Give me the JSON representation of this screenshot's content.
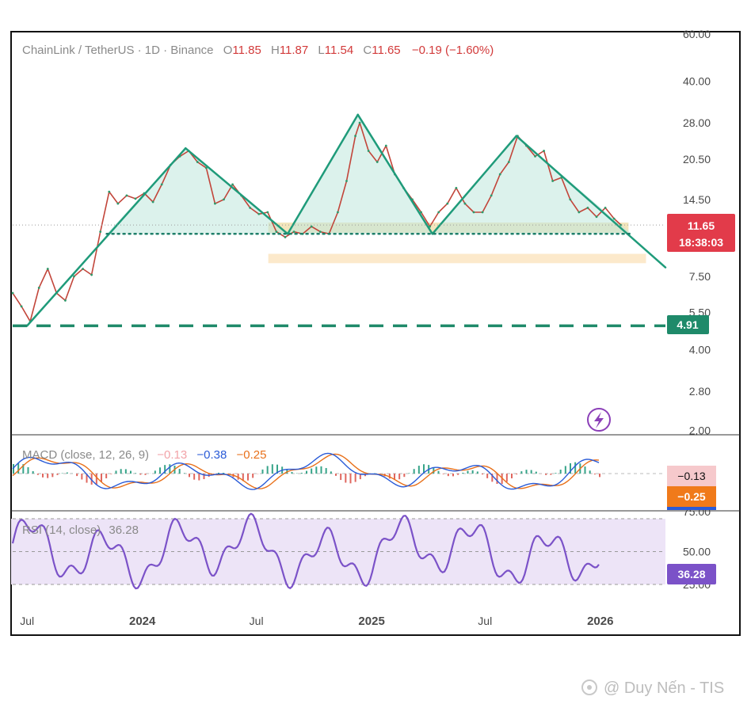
{
  "chart_data": {
    "type": "line",
    "title": "ChainLink / TetherUS · 1D · Binance",
    "ohlc": {
      "open_label": "O",
      "open": "11.85",
      "high_label": "H",
      "high": "11.87",
      "low_label": "L",
      "low": "11.54",
      "close_label": "C",
      "close": "11.65",
      "change": "−0.19 (−1.60%)"
    },
    "price_axis": {
      "scale": "log",
      "range": [
        2.0,
        60.0
      ],
      "ticks": [
        "60.00",
        "40.00",
        "28.00",
        "20.50",
        "14.50",
        "7.50",
        "5.50",
        "4.00",
        "2.80",
        "2.00"
      ]
    },
    "time_axis": {
      "labels": [
        "Jul",
        "2024",
        "Jul",
        "2025",
        "Jul",
        "2026"
      ],
      "bold": [
        false,
        true,
        false,
        true,
        false,
        true
      ],
      "dates": [
        "2023-07-01",
        "2024-01-01",
        "2024-07-01",
        "2025-01-01",
        "2025-07-01",
        "2026-01-01"
      ],
      "range": [
        "2023-06-08",
        "2026-04-15"
      ]
    },
    "price_path": [
      [
        "2023-06-08",
        6.5
      ],
      [
        "2023-06-22",
        5.8
      ],
      [
        "2023-07-06",
        5.1
      ],
      [
        "2023-07-20",
        6.8
      ],
      [
        "2023-08-03",
        8.0
      ],
      [
        "2023-08-17",
        6.5
      ],
      [
        "2023-08-31",
        6.1
      ],
      [
        "2023-09-14",
        7.5
      ],
      [
        "2023-09-28",
        8.0
      ],
      [
        "2023-10-12",
        7.6
      ],
      [
        "2023-10-26",
        11.0
      ],
      [
        "2023-11-09",
        15.5
      ],
      [
        "2023-11-23",
        14.0
      ],
      [
        "2023-12-07",
        15.0
      ],
      [
        "2023-12-21",
        14.6
      ],
      [
        "2024-01-04",
        15.3
      ],
      [
        "2024-01-18",
        14.2
      ],
      [
        "2024-02-01",
        16.5
      ],
      [
        "2024-02-15",
        19.5
      ],
      [
        "2024-03-01",
        21.0
      ],
      [
        "2024-03-15",
        22.0
      ],
      [
        "2024-03-29",
        20.0
      ],
      [
        "2024-04-12",
        19.0
      ],
      [
        "2024-04-26",
        14.0
      ],
      [
        "2024-05-10",
        14.5
      ],
      [
        "2024-05-24",
        16.5
      ],
      [
        "2024-06-07",
        15.0
      ],
      [
        "2024-06-21",
        13.5
      ],
      [
        "2024-07-05",
        12.8
      ],
      [
        "2024-07-19",
        13.0
      ],
      [
        "2024-08-02",
        11.0
      ],
      [
        "2024-08-16",
        10.5
      ],
      [
        "2024-08-30",
        11.0
      ],
      [
        "2024-09-13",
        10.8
      ],
      [
        "2024-09-27",
        11.5
      ],
      [
        "2024-10-11",
        11.0
      ],
      [
        "2024-10-25",
        10.8
      ],
      [
        "2024-11-08",
        13.0
      ],
      [
        "2024-11-22",
        17.0
      ],
      [
        "2024-12-06",
        25.0
      ],
      [
        "2024-12-13",
        28.0
      ],
      [
        "2024-12-27",
        22.0
      ],
      [
        "2025-01-10",
        20.0
      ],
      [
        "2025-01-24",
        23.0
      ],
      [
        "2025-02-07",
        18.0
      ],
      [
        "2025-02-21",
        16.0
      ],
      [
        "2025-03-07",
        14.5
      ],
      [
        "2025-03-21",
        13.0
      ],
      [
        "2025-04-04",
        11.5
      ],
      [
        "2025-04-18",
        13.0
      ],
      [
        "2025-05-02",
        14.0
      ],
      [
        "2025-05-16",
        16.0
      ],
      [
        "2025-05-30",
        14.0
      ],
      [
        "2025-06-13",
        13.0
      ],
      [
        "2025-06-27",
        13.0
      ],
      [
        "2025-07-11",
        15.0
      ],
      [
        "2025-07-25",
        18.0
      ],
      [
        "2025-08-08",
        20.0
      ],
      [
        "2025-08-22",
        25.0
      ],
      [
        "2025-09-05",
        23.0
      ],
      [
        "2025-09-19",
        21.0
      ],
      [
        "2025-10-03",
        22.0
      ],
      [
        "2025-10-17",
        17.0
      ],
      [
        "2025-10-31",
        17.5
      ],
      [
        "2025-11-14",
        14.5
      ],
      [
        "2025-11-28",
        13.0
      ],
      [
        "2025-12-12",
        13.5
      ],
      [
        "2025-12-26",
        12.5
      ],
      [
        "2026-01-09",
        13.5
      ],
      [
        "2026-01-23",
        12.3
      ],
      [
        "2026-02-03",
        11.65
      ]
    ],
    "pattern_lines": [
      {
        "color": "#1f9b7a",
        "points": [
          [
            "2023-07-01",
            4.91
          ],
          [
            "2024-03-10",
            22.5
          ]
        ]
      },
      {
        "color": "#1f9b7a",
        "points": [
          [
            "2024-03-10",
            22.5
          ],
          [
            "2024-08-20",
            10.8
          ]
        ]
      },
      {
        "color": "#1f9b7a",
        "points": [
          [
            "2024-08-20",
            10.8
          ],
          [
            "2024-12-10",
            30.0
          ]
        ]
      },
      {
        "color": "#1f9b7a",
        "points": [
          [
            "2024-12-10",
            30.0
          ],
          [
            "2025-04-08",
            10.8
          ]
        ]
      },
      {
        "color": "#1f9b7a",
        "points": [
          [
            "2025-04-08",
            10.8
          ],
          [
            "2025-08-20",
            25.0
          ]
        ]
      },
      {
        "color": "#1f9b7a",
        "points": [
          [
            "2025-08-20",
            25.0
          ],
          [
            "2026-04-15",
            8.1
          ]
        ]
      }
    ],
    "neckline": {
      "price": 10.8,
      "from": "2023-11-05",
      "to": "2026-02-20",
      "style": "dotted",
      "color": "#1f7f6a"
    },
    "support_line": {
      "price": 4.91,
      "label": "4.91",
      "style": "dashed",
      "color": "#1f8a6a"
    },
    "zones": [
      {
        "from": "2024-07-20",
        "to": "2026-02-15",
        "low": 10.9,
        "high": 11.9,
        "color": "#f1e1b0"
      },
      {
        "from": "2024-07-20",
        "to": "2026-03-15",
        "low": 8.4,
        "high": 9.1,
        "color": "#fbe5c2"
      }
    ],
    "last_price": {
      "value": 11.65,
      "label": "11.65",
      "countdown": "18:38:03",
      "color": "#e23b4a"
    },
    "macd": {
      "label": "MACD (close, 12, 26, 9)",
      "histogram": "−0.13",
      "macd": "−0.38",
      "signal": "−0.25",
      "badge_top": "−0.13",
      "badge_bottom": "−0.25"
    },
    "rsi": {
      "label": "RSI (14, close)",
      "value": "36.28",
      "ticks": [
        "75.00",
        "50.00",
        "25.00"
      ],
      "band": [
        30,
        70
      ],
      "color": "#7b52c8"
    }
  },
  "icons": {
    "lightning": "lightning-icon",
    "watermark": "tradingview-logo-icon"
  },
  "watermark": {
    "text": "@ Duy Nến - TIS"
  }
}
